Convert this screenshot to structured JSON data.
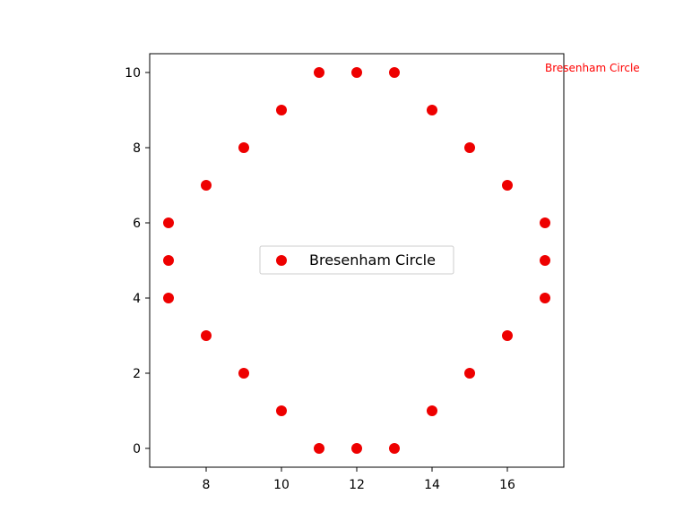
{
  "chart_data": {
    "type": "scatter",
    "title": "",
    "xlabel": "",
    "ylabel": "",
    "xlim": [
      6.5,
      17.5
    ],
    "ylim": [
      -0.5,
      10.5
    ],
    "x_ticks": [
      8,
      10,
      12,
      14,
      16
    ],
    "y_ticks": [
      0,
      2,
      4,
      6,
      8,
      10
    ],
    "x_tick_labels": [
      "8",
      "10",
      "12",
      "14",
      "16"
    ],
    "y_tick_labels": [
      "0",
      "2",
      "4",
      "6",
      "8",
      "10"
    ],
    "grid": false,
    "legend_position": "center",
    "annotation": {
      "text": "Bresenham Circle",
      "x": 17,
      "y": 10,
      "color": "#ff0000"
    },
    "series": [
      {
        "name": "Bresenham Circle",
        "color": "#ee0000",
        "points": [
          [
            11,
            0
          ],
          [
            12,
            0
          ],
          [
            13,
            0
          ],
          [
            10,
            1
          ],
          [
            14,
            1
          ],
          [
            9,
            2
          ],
          [
            15,
            2
          ],
          [
            8,
            3
          ],
          [
            16,
            3
          ],
          [
            7,
            4
          ],
          [
            17,
            4
          ],
          [
            7,
            5
          ],
          [
            17,
            5
          ],
          [
            7,
            6
          ],
          [
            17,
            6
          ],
          [
            8,
            7
          ],
          [
            16,
            7
          ],
          [
            9,
            8
          ],
          [
            15,
            8
          ],
          [
            10,
            9
          ],
          [
            14,
            9
          ],
          [
            11,
            10
          ],
          [
            12,
            10
          ],
          [
            13,
            10
          ]
        ]
      }
    ]
  }
}
